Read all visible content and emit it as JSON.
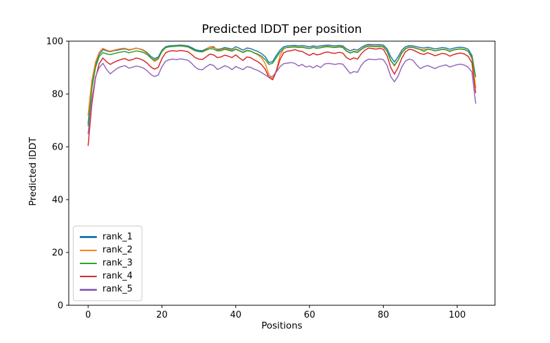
{
  "chart_data": {
    "type": "line",
    "title": "Predicted lDDT per position",
    "xlabel": "Positions",
    "ylabel": "Predicted lDDT",
    "xlim": [
      -5.25,
      110.25
    ],
    "ylim": [
      0,
      100
    ],
    "xticks": [
      0,
      20,
      40,
      60,
      80,
      100
    ],
    "yticks": [
      0,
      20,
      40,
      60,
      80,
      100
    ],
    "grid": false,
    "legend_position": "lower left",
    "x": [
      0,
      1,
      2,
      3,
      4,
      5,
      6,
      7,
      8,
      9,
      10,
      11,
      12,
      13,
      14,
      15,
      16,
      17,
      18,
      19,
      20,
      21,
      22,
      23,
      24,
      25,
      26,
      27,
      28,
      29,
      30,
      31,
      32,
      33,
      34,
      35,
      36,
      37,
      38,
      39,
      40,
      41,
      42,
      43,
      44,
      45,
      46,
      47,
      48,
      49,
      50,
      51,
      52,
      53,
      54,
      55,
      56,
      57,
      58,
      59,
      60,
      61,
      62,
      63,
      64,
      65,
      66,
      67,
      68,
      69,
      70,
      71,
      72,
      73,
      74,
      75,
      76,
      77,
      78,
      79,
      80,
      81,
      82,
      83,
      84,
      85,
      86,
      87,
      88,
      89,
      90,
      91,
      92,
      93,
      94,
      95,
      96,
      97,
      98,
      99,
      100,
      101,
      102,
      103,
      104,
      105
    ],
    "series": [
      {
        "name": "rank_1",
        "color": "#1f77b4",
        "values": [
          69,
          83,
          91,
          95,
          96.8,
          96.3,
          96,
          96.4,
          96.6,
          96.9,
          97.1,
          96.6,
          96.9,
          97.3,
          97.1,
          96.6,
          95.7,
          94.2,
          93.4,
          94,
          96.6,
          97.9,
          98.2,
          98.3,
          98.4,
          98.5,
          98.4,
          98.2,
          97.6,
          96.8,
          96.5,
          96.4,
          97.1,
          97.8,
          97.6,
          96.9,
          97.1,
          97.6,
          97.3,
          97,
          97.9,
          97.3,
          96.6,
          97.4,
          97.2,
          96.6,
          96.1,
          95.3,
          94.1,
          91.9,
          92.3,
          94.6,
          96.6,
          97.9,
          98.2,
          98.3,
          98.4,
          98.2,
          98.3,
          98.1,
          97.9,
          98.2,
          98,
          98.2,
          98.4,
          98.5,
          98.3,
          98.2,
          98.4,
          98.2,
          97.1,
          96.4,
          96.9,
          96.6,
          97.6,
          98.4,
          98.8,
          98.7,
          98.6,
          98.7,
          98.5,
          97.1,
          94.1,
          92.1,
          94.1,
          96.6,
          97.9,
          98.3,
          98.2,
          97.9,
          97.6,
          97.4,
          97.7,
          97.4,
          97.1,
          97.3,
          97.6,
          97.4,
          96.9,
          97.3,
          97.6,
          97.7,
          97.5,
          96.9,
          94.6,
          86.5
        ]
      },
      {
        "name": "rank_2",
        "color": "#ff7f0e",
        "values": [
          72,
          85,
          92,
          95.8,
          97.3,
          96.6,
          96.2,
          96.6,
          96.9,
          97.2,
          97.3,
          96.8,
          97,
          97.4,
          97,
          96.4,
          95.3,
          93.6,
          92.3,
          93.2,
          96.2,
          97.6,
          97.9,
          98,
          98.1,
          98.2,
          98,
          97.8,
          97.1,
          96.3,
          96,
          95.9,
          96.8,
          97.9,
          98,
          96.6,
          96.7,
          97.2,
          96.9,
          96.5,
          97.1,
          96.5,
          95.8,
          96.6,
          96.3,
          95.5,
          94.8,
          93.7,
          91.5,
          87.3,
          85.8,
          89,
          94.5,
          97.2,
          97.7,
          97.8,
          98,
          97.7,
          97.8,
          97.5,
          97.3,
          97.7,
          97.4,
          97.6,
          98,
          98.1,
          97.8,
          97.7,
          98,
          97.8,
          96.4,
          95.6,
          96.2,
          95.9,
          97,
          97.9,
          98.3,
          98.2,
          98.1,
          98.2,
          98,
          96.3,
          92.8,
          90.6,
          92.9,
          95.8,
          97.3,
          97.8,
          97.7,
          97.3,
          96.9,
          96.7,
          97.1,
          96.8,
          96.4,
          96.7,
          97,
          96.8,
          96.2,
          96.7,
          97,
          97.1,
          96.9,
          96.2,
          93.3,
          82.5
        ]
      },
      {
        "name": "rank_3",
        "color": "#2ca02c",
        "values": [
          68,
          82,
          90,
          94.2,
          95.7,
          95.2,
          94.9,
          95.3,
          95.6,
          95.9,
          96.1,
          95.6,
          95.9,
          96.3,
          96.1,
          95.7,
          94.9,
          93.6,
          92.8,
          93.5,
          96,
          97.5,
          97.9,
          98,
          98.1,
          98.2,
          98.1,
          97.9,
          97.2,
          96.4,
          96.1,
          96,
          96.6,
          97.2,
          97,
          96.3,
          96.4,
          96.9,
          96.6,
          96.2,
          96.9,
          96.3,
          95.7,
          96.4,
          96.2,
          95.6,
          95.1,
          94.3,
          93,
          91.2,
          91.7,
          93.8,
          95.8,
          97.3,
          97.6,
          97.7,
          97.8,
          97.6,
          97.7,
          97.4,
          97.2,
          97.6,
          97.3,
          97.5,
          97.8,
          97.9,
          97.7,
          97.6,
          97.8,
          97.6,
          96.2,
          95.5,
          96,
          95.7,
          96.8,
          97.7,
          98.1,
          98,
          97.9,
          98,
          97.8,
          96.2,
          92.6,
          90.9,
          92.8,
          95.5,
          97.1,
          97.7,
          97.6,
          97.2,
          96.8,
          96.1,
          97,
          96.7,
          96.3,
          96.6,
          96.9,
          96.7,
          96.1,
          96.6,
          96.9,
          97,
          96.8,
          96.1,
          93.8,
          86.5
        ]
      },
      {
        "name": "rank_4",
        "color": "#d62728",
        "values": [
          60.5,
          76,
          86,
          91.5,
          93.6,
          92.2,
          91.2,
          92,
          92.6,
          93.1,
          93.4,
          92.7,
          93,
          93.6,
          93.3,
          92.7,
          91.7,
          90.2,
          89.4,
          90.1,
          93.4,
          95.6,
          96.2,
          96.4,
          96.2,
          96.5,
          96.3,
          96,
          95,
          93.8,
          93.2,
          93.1,
          94.1,
          95.1,
          94.8,
          93.8,
          94,
          94.7,
          94.3,
          93.8,
          94.8,
          93.6,
          92.7,
          94,
          93.8,
          92.9,
          92.2,
          91.1,
          89.4,
          86.2,
          85.4,
          88.5,
          93,
          95.6,
          96.2,
          96.4,
          96.8,
          96.3,
          96.1,
          95.3,
          94.6,
          95.4,
          94.8,
          95.1,
          95.7,
          95.9,
          95.5,
          95.4,
          95.8,
          95.5,
          93.8,
          93,
          93.7,
          93.2,
          95.2,
          96.6,
          97.4,
          97.2,
          97,
          97.3,
          96.9,
          94.5,
          90,
          87.5,
          90.1,
          93.6,
          96,
          96.9,
          96.7,
          96,
          95.3,
          95,
          95.6,
          95.1,
          94.5,
          94.9,
          95.4,
          95.1,
          94.3,
          94.9,
          95.3,
          95.5,
          95.1,
          94.2,
          91.8,
          80.5
        ]
      },
      {
        "name": "rank_5",
        "color": "#9467bd",
        "values": [
          65,
          78,
          86.5,
          90,
          91.6,
          89.3,
          87.6,
          88.8,
          89.8,
          90.4,
          90.7,
          89.8,
          90.1,
          90.6,
          90.3,
          89.8,
          88.8,
          87.4,
          86.6,
          87.2,
          90.3,
          92.4,
          93,
          93.2,
          93,
          93.3,
          93.1,
          92.8,
          91.7,
          90.2,
          89.3,
          89.2,
          90.3,
          91.2,
          90.8,
          89.3,
          89.9,
          90.7,
          90.2,
          89.2,
          90.4,
          89.8,
          89.2,
          90.3,
          90.1,
          89.4,
          88.9,
          88.1,
          87.2,
          86.3,
          86.7,
          88.3,
          90.3,
          91.5,
          91.7,
          91.9,
          91.6,
          90.6,
          91.2,
          90.2,
          90.6,
          89.9,
          90.8,
          90,
          91.3,
          91.6,
          91.4,
          91.2,
          91.5,
          91.3,
          89.6,
          87.8,
          88.5,
          88.2,
          90.8,
          92.4,
          93.2,
          93.1,
          93,
          93.3,
          93,
          90.8,
          86.6,
          84.6,
          86.8,
          90.3,
          92.5,
          93.2,
          92.8,
          91,
          89.6,
          90.3,
          90.8,
          90.2,
          89.6,
          90.3,
          90.7,
          91,
          90.2,
          90.7,
          91.1,
          91.3,
          90.9,
          90.1,
          88.3,
          76.5
        ]
      }
    ]
  }
}
